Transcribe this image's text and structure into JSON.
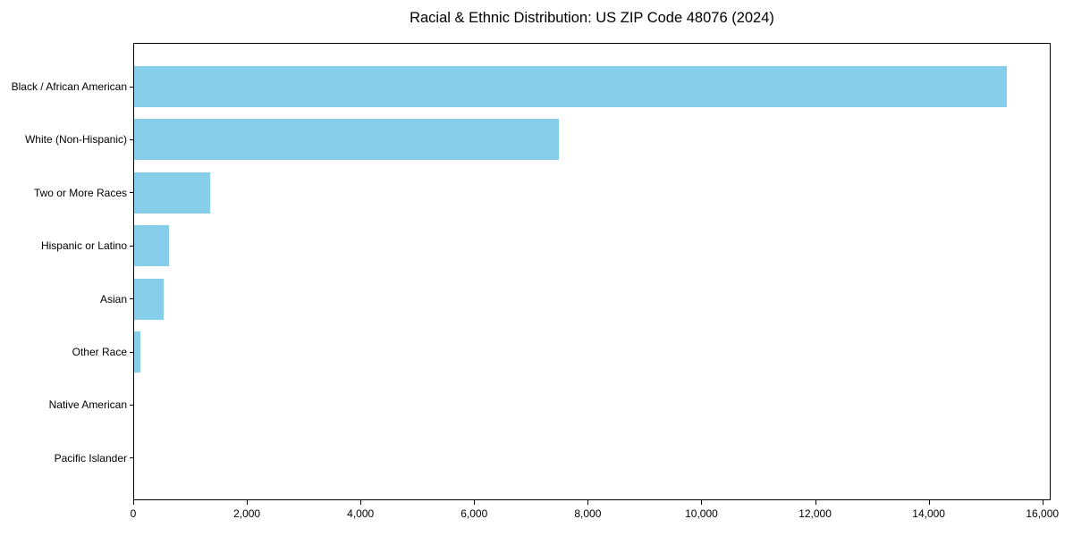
{
  "chart": {
    "title": "Racial & Ethnic Distribution: US ZIP Code 48076 (2024)"
  },
  "chart_data": {
    "type": "bar",
    "orientation": "horizontal",
    "title": "Racial & Ethnic Distribution: US ZIP Code 48076 (2024)",
    "categories": [
      "Black / African American",
      "White (Non-Hispanic)",
      "Two or More Races",
      "Hispanic or Latino",
      "Asian",
      "Other Race",
      "Native American",
      "Pacific Islander"
    ],
    "values": [
      15370,
      7490,
      1340,
      620,
      520,
      110,
      0,
      0
    ],
    "xlabel": "",
    "ylabel": "",
    "xlim": [
      0,
      16130
    ],
    "xticks": [
      0,
      2000,
      4000,
      6000,
      8000,
      10000,
      12000,
      14000,
      16000
    ],
    "bar_color": "#87CEEB",
    "grid": false,
    "legend_position": "none"
  }
}
